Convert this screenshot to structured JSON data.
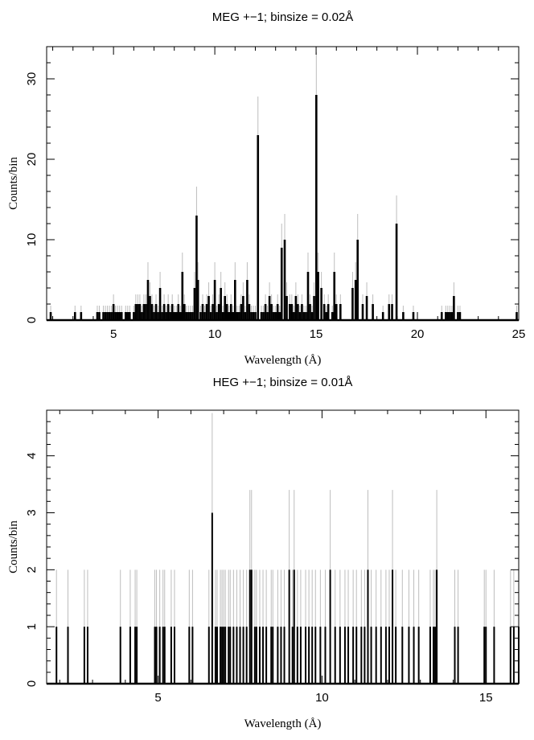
{
  "chart_data": [
    {
      "type": "histogram",
      "title": "MEG +−1; binsize = 0.02Å",
      "xlabel": "Wavelength (Å)",
      "ylabel": "Counts/bin",
      "xlim": [
        1.7,
        25.0
      ],
      "ylim": [
        0,
        34
      ],
      "xticks": [
        5,
        10,
        15,
        20,
        25
      ],
      "yticks": [
        0,
        10,
        20,
        30
      ],
      "grid": false,
      "error_color": "#bdbdbd",
      "series": [
        {
          "x": [
            1.9,
            3.1,
            3.4,
            4.2,
            4.3,
            4.5,
            4.6,
            4.7,
            4.8,
            4.9,
            5.0,
            5.1,
            5.2,
            5.3,
            5.4,
            5.6,
            5.7,
            5.8,
            6.0,
            6.1,
            6.2,
            6.3,
            6.4,
            6.5,
            6.6,
            6.7,
            6.8,
            6.9,
            7.0,
            7.1,
            7.2,
            7.3,
            7.4,
            7.5,
            7.6,
            7.7,
            7.8,
            7.9,
            8.0,
            8.1,
            8.2,
            8.3,
            8.4,
            8.5,
            8.6,
            8.7,
            8.8,
            8.9,
            9.0,
            9.1,
            9.17,
            9.3,
            9.4,
            9.5,
            9.6,
            9.7,
            9.8,
            9.9,
            10.0,
            10.1,
            10.2,
            10.3,
            10.4,
            10.5,
            10.6,
            10.7,
            10.8,
            10.9,
            11.0,
            11.1,
            11.2,
            11.3,
            11.4,
            11.5,
            11.6,
            11.7,
            11.8,
            11.9,
            12.0,
            12.13,
            12.3,
            12.4,
            12.5,
            12.6,
            12.7,
            12.8,
            12.9,
            13.0,
            13.1,
            13.2,
            13.3,
            13.45,
            13.55,
            13.7,
            13.8,
            13.9,
            14.0,
            14.1,
            14.2,
            14.3,
            14.4,
            14.5,
            14.6,
            14.7,
            14.8,
            14.9,
            15.01,
            15.1,
            15.26,
            15.4,
            15.5,
            15.6,
            15.8,
            15.9,
            16.0,
            16.2,
            16.8,
            16.95,
            17.05,
            17.3,
            17.5,
            17.8,
            18.3,
            18.6,
            18.75,
            18.97,
            19.3,
            19.8,
            21.2,
            21.4,
            21.5,
            21.6,
            21.7,
            21.8,
            22.0,
            22.1,
            24.9
          ],
          "y": [
            1,
            1,
            1,
            1,
            1,
            1,
            1,
            1,
            1,
            1,
            2,
            1,
            1,
            1,
            1,
            1,
            1,
            1,
            1,
            2,
            2,
            2,
            1,
            2,
            2,
            5,
            3,
            2,
            1,
            2,
            1,
            4,
            1,
            2,
            1,
            2,
            1,
            2,
            1,
            1,
            2,
            1,
            6,
            2,
            1,
            1,
            1,
            1,
            4,
            13,
            5,
            1,
            2,
            1,
            2,
            3,
            1,
            2,
            5,
            1,
            2,
            4,
            1,
            3,
            2,
            1,
            2,
            1,
            5,
            1,
            1,
            2,
            3,
            1,
            5,
            2,
            1,
            1,
            1,
            23,
            1,
            1,
            2,
            1,
            3,
            2,
            1,
            1,
            2,
            1,
            9,
            10,
            3,
            2,
            2,
            1,
            3,
            2,
            1,
            2,
            1,
            1,
            6,
            2,
            1,
            3,
            28,
            6,
            4,
            2,
            1,
            2,
            1,
            6,
            2,
            2,
            4,
            5,
            10,
            2,
            3,
            2,
            1,
            2,
            2,
            12,
            1,
            1,
            1,
            1,
            1,
            1,
            1,
            3,
            1,
            1,
            1
          ],
          "err": [
            0.8,
            0.8,
            0.8,
            0.8,
            0.8,
            0.8,
            0.8,
            0.8,
            0.8,
            0.8,
            1.2,
            0.8,
            0.8,
            0.8,
            0.8,
            0.8,
            0.8,
            0.8,
            0.8,
            1.2,
            1.2,
            1.2,
            0.8,
            1.2,
            1.2,
            2.2,
            1.7,
            1.2,
            0.8,
            1.2,
            0.8,
            2.0,
            0.8,
            1.2,
            0.8,
            1.2,
            0.8,
            1.2,
            0.8,
            0.8,
            1.2,
            0.8,
            2.4,
            1.2,
            0.8,
            0.8,
            0.8,
            0.8,
            2.0,
            3.6,
            2.2,
            0.8,
            1.2,
            0.8,
            1.2,
            1.7,
            0.8,
            1.2,
            2.2,
            0.8,
            1.2,
            2.0,
            0.8,
            1.7,
            1.2,
            0.8,
            1.2,
            0.8,
            2.2,
            0.8,
            0.8,
            1.2,
            1.7,
            0.8,
            2.2,
            1.2,
            0.8,
            0.8,
            0.8,
            4.8,
            0.8,
            0.8,
            1.2,
            0.8,
            1.7,
            1.2,
            0.8,
            0.8,
            1.2,
            0.8,
            3.0,
            3.2,
            1.7,
            1.2,
            1.2,
            0.8,
            1.7,
            1.2,
            0.8,
            1.2,
            0.8,
            0.8,
            2.4,
            1.2,
            0.8,
            1.7,
            5.3,
            2.4,
            2.0,
            1.2,
            0.8,
            1.2,
            0.8,
            2.4,
            1.2,
            1.2,
            2.0,
            2.2,
            3.2,
            1.2,
            1.7,
            1.2,
            0.8,
            1.2,
            1.2,
            3.5,
            0.8,
            0.8,
            0.8,
            0.8,
            0.8,
            0.8,
            0.8,
            1.7,
            0.8,
            0.8,
            0.8
          ]
        }
      ]
    },
    {
      "type": "histogram",
      "title": "HEG +−1; binsize = 0.01Å",
      "xlabel": "Wavelength (Å)",
      "ylabel": "Counts/bin",
      "xlim": [
        1.6,
        16.0
      ],
      "ylim": [
        0,
        4.8
      ],
      "xticks": [
        5,
        10,
        15
      ],
      "yticks": [
        0,
        1,
        2,
        3,
        4
      ],
      "grid": false,
      "error_color": "#bdbdbd",
      "series": [
        {
          "x": [
            1.9,
            2.25,
            2.75,
            2.85,
            3.85,
            4.15,
            4.3,
            4.35,
            4.9,
            4.95,
            5.05,
            5.15,
            5.2,
            5.4,
            5.5,
            5.95,
            6.05,
            6.55,
            6.65,
            6.75,
            6.8,
            6.9,
            6.95,
            7.0,
            7.05,
            7.15,
            7.2,
            7.3,
            7.4,
            7.5,
            7.6,
            7.7,
            7.8,
            7.85,
            7.95,
            8.0,
            8.1,
            8.2,
            8.3,
            8.45,
            8.5,
            8.65,
            8.75,
            8.85,
            9.0,
            9.1,
            9.15,
            9.25,
            9.35,
            9.5,
            9.6,
            9.7,
            9.8,
            9.95,
            10.1,
            10.25,
            10.4,
            10.55,
            10.7,
            10.8,
            10.95,
            11.05,
            11.2,
            11.3,
            11.4,
            11.5,
            11.65,
            11.8,
            11.95,
            12.05,
            12.15,
            12.25,
            12.45,
            12.65,
            12.8,
            12.95,
            13.3,
            13.4,
            13.45,
            13.5,
            14.05,
            14.15,
            14.95,
            15.0,
            15.25,
            15.75,
            15.85,
            16.0
          ],
          "y": [
            1,
            1,
            1,
            1,
            1,
            1,
            1,
            1,
            1,
            1,
            1,
            1,
            1,
            1,
            1,
            1,
            1,
            1,
            3,
            1,
            1,
            1,
            1,
            1,
            1,
            1,
            1,
            1,
            1,
            1,
            1,
            1,
            2,
            2,
            1,
            1,
            1,
            1,
            1,
            1,
            1,
            1,
            1,
            1,
            2,
            1,
            2,
            1,
            1,
            1,
            1,
            1,
            1,
            1,
            1,
            2,
            1,
            1,
            1,
            1,
            1,
            1,
            1,
            1,
            2,
            1,
            1,
            1,
            1,
            1,
            2,
            1,
            1,
            1,
            1,
            1,
            1,
            1,
            1,
            2,
            1,
            1,
            1,
            1,
            1,
            1,
            1,
            1
          ],
          "err": [
            1.0,
            1.0,
            1.0,
            1.0,
            1.0,
            1.0,
            1.0,
            1.0,
            1.0,
            1.0,
            1.0,
            1.0,
            1.0,
            1.0,
            1.0,
            1.0,
            1.0,
            1.0,
            1.75,
            1.0,
            1.0,
            1.0,
            1.0,
            1.0,
            1.0,
            1.0,
            1.0,
            1.0,
            1.0,
            1.0,
            1.0,
            1.0,
            1.4,
            1.4,
            1.0,
            1.0,
            1.0,
            1.0,
            1.0,
            1.0,
            1.0,
            1.0,
            1.0,
            1.0,
            1.4,
            1.0,
            1.4,
            1.0,
            1.0,
            1.0,
            1.0,
            1.0,
            1.0,
            1.0,
            1.0,
            1.4,
            1.0,
            1.0,
            1.0,
            1.0,
            1.0,
            1.0,
            1.0,
            1.0,
            1.4,
            1.0,
            1.0,
            1.0,
            1.0,
            1.0,
            1.4,
            1.0,
            1.0,
            1.0,
            1.0,
            1.0,
            1.0,
            1.0,
            1.0,
            1.4,
            1.0,
            1.0,
            1.0,
            1.0,
            1.0,
            1.0,
            1.0,
            1.0
          ]
        }
      ]
    }
  ]
}
